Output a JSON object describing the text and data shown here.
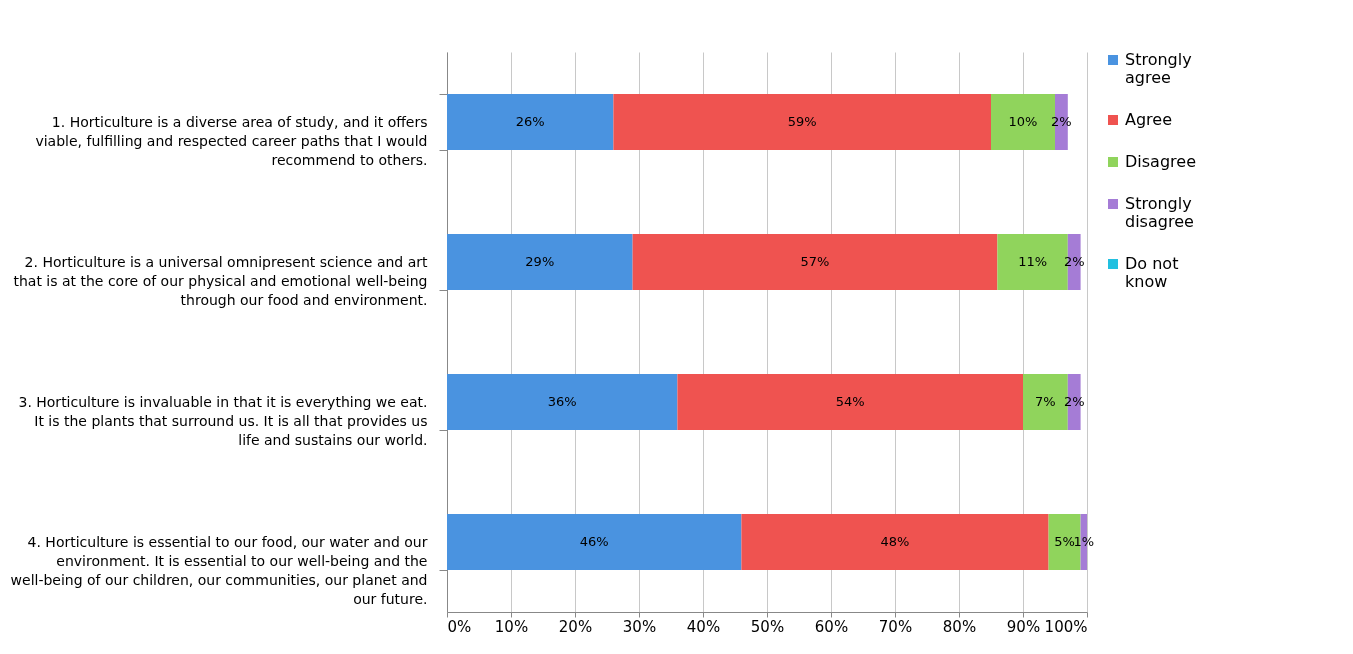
{
  "chart_data": {
    "type": "bar",
    "orientation": "horizontal",
    "stacked": true,
    "categories": [
      "1. Horticulture is a diverse area of study, and it offers viable, fulfilling and respected career paths that I would recommend to others.",
      "2. Horticulture is a universal omnipresent science and art that is at the core of our physical and emotional well-being through our food and environment.",
      "3. Horticulture is invaluable in that it is everything we eat. It is the plants that surround us. It is all that provides us life and sustains our world.",
      "4. Horticulture is essential to our food, our water and our environment. It is essential to our well-being and the well-being of our children, our communities, our planet and our future."
    ],
    "series": [
      {
        "name": "Strongly agree",
        "color": "#4a93e0",
        "values": [
          26,
          29,
          36,
          46
        ],
        "value_labels": [
          "26%",
          "29%",
          "36%",
          "46%"
        ]
      },
      {
        "name": "Agree",
        "color": "#ef5350",
        "values": [
          59,
          57,
          54,
          48
        ],
        "value_labels": [
          "59%",
          "57%",
          "54%",
          "48%"
        ]
      },
      {
        "name": "Disagree",
        "color": "#90d45c",
        "values": [
          10,
          11,
          7,
          5
        ],
        "value_labels": [
          "10%",
          "11%",
          "7%",
          "5%"
        ]
      },
      {
        "name": "Strongly disagree",
        "color": "#a57cd6",
        "values": [
          2,
          2,
          2,
          1
        ],
        "value_labels": [
          "2%",
          "2%",
          "2%",
          "1%"
        ]
      },
      {
        "name": "Do not know",
        "color": "#22c0e0",
        "values": [
          0,
          0,
          0,
          0
        ],
        "value_labels": [
          null,
          null,
          null,
          null
        ]
      }
    ],
    "xlim": [
      0,
      100
    ],
    "xticks": [
      {
        "value": 0,
        "label": "0%"
      },
      {
        "value": 10,
        "label": "10%"
      },
      {
        "value": 20,
        "label": "20%"
      },
      {
        "value": 30,
        "label": "30%"
      },
      {
        "value": 40,
        "label": "40%"
      },
      {
        "value": 50,
        "label": "50%"
      },
      {
        "value": 60,
        "label": "60%"
      },
      {
        "value": 70,
        "label": "70%"
      },
      {
        "value": 80,
        "label": "80%"
      },
      {
        "value": 90,
        "label": "90%"
      },
      {
        "value": 100,
        "label": "100%"
      }
    ],
    "grid": "x",
    "legend": "right"
  }
}
